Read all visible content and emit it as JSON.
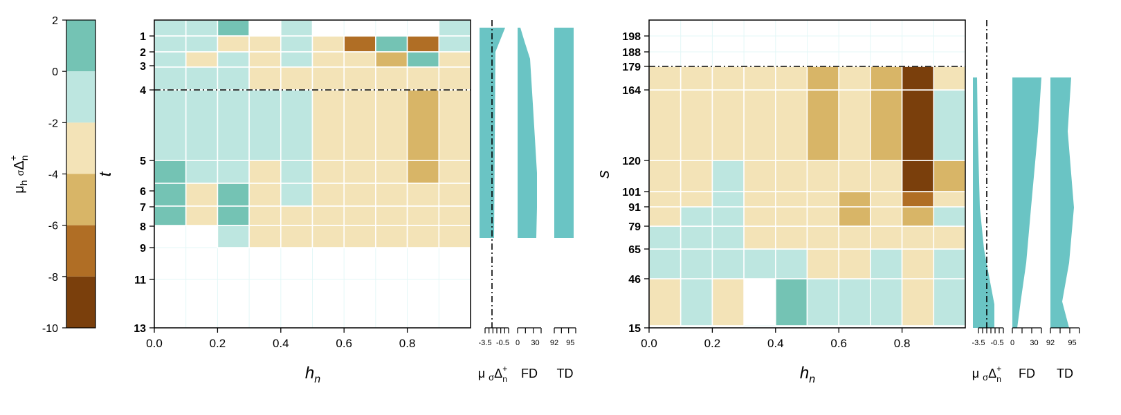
{
  "colorbar": {
    "label_parts": [
      "μ",
      "h",
      "σ",
      "Δ",
      "+",
      "n"
    ],
    "ticks": [
      2,
      0,
      -2,
      -4,
      -6,
      -8,
      -10
    ],
    "bins": [
      {
        "min": 0,
        "max": 2,
        "color": "#74c3b4"
      },
      {
        "min": -2,
        "max": 0,
        "color": "#bde6e0"
      },
      {
        "min": -4,
        "max": -2,
        "color": "#f3e3b7"
      },
      {
        "min": -6,
        "max": -4,
        "color": "#d8b567"
      },
      {
        "min": -8,
        "max": -6,
        "color": "#b06e25"
      },
      {
        "min": -10,
        "max": -8,
        "color": "#7a3f0c"
      }
    ]
  },
  "chart_data": [
    {
      "type": "heatmap",
      "xlabel_parts": [
        "h",
        "n"
      ],
      "ylabel": "t",
      "x_edges": [
        0,
        0.1,
        0.2,
        0.3,
        0.4,
        0.5,
        0.6,
        0.7,
        0.8,
        0.9,
        1.0
      ],
      "xticks": [
        "0.0",
        "0.2",
        "0.4",
        "0.6",
        "0.8"
      ],
      "xtick_values": [
        0,
        0.2,
        0.4,
        0.6,
        0.8
      ],
      "yticks": [
        "1",
        "2",
        "3",
        "4",
        "5",
        "6",
        "7",
        "8",
        "9",
        "11",
        "13"
      ],
      "y_edges": [
        "0.5",
        "1.5",
        "2.5",
        "3.5",
        "4",
        "5",
        "6",
        "7",
        "8",
        "9",
        "11",
        "13"
      ],
      "threshold_line": "4",
      "rows_color_index": [
        [
          1,
          1,
          0,
          null,
          1,
          null,
          null,
          null,
          null,
          1
        ],
        [
          1,
          1,
          2,
          2,
          1,
          2,
          4,
          0,
          4,
          1
        ],
        [
          1,
          2,
          1,
          2,
          1,
          2,
          2,
          3,
          0,
          2
        ],
        [
          1,
          1,
          1,
          2,
          2,
          2,
          2,
          2,
          2,
          2
        ],
        [
          1,
          1,
          1,
          1,
          1,
          2,
          2,
          2,
          3,
          2
        ],
        [
          0,
          1,
          1,
          2,
          1,
          2,
          2,
          2,
          3,
          2
        ],
        [
          0,
          2,
          0,
          2,
          1,
          2,
          2,
          2,
          2,
          2
        ],
        [
          0,
          2,
          0,
          2,
          2,
          2,
          2,
          2,
          2,
          2
        ],
        [
          null,
          null,
          1,
          2,
          2,
          2,
          2,
          2,
          2,
          2
        ],
        [
          null,
          null,
          null,
          null,
          null,
          null,
          null,
          null,
          null,
          null
        ],
        [
          null,
          null,
          null,
          null,
          null,
          null,
          null,
          null,
          null,
          null
        ]
      ],
      "side_panels": [
        {
          "label_parts": [
            "μ",
            "σ",
            "Δ",
            "+",
            "n"
          ],
          "ticks": [
            "-3.5",
            "-0.5"
          ],
          "tick_count": 7,
          "vline": true
        },
        {
          "label": "FD",
          "ticks": [
            "0",
            "30"
          ],
          "tick_count": 4
        },
        {
          "label": "TD",
          "ticks": [
            "92",
            "95"
          ],
          "tick_count": 4
        }
      ]
    },
    {
      "type": "heatmap",
      "xlabel_parts": [
        "h",
        "n"
      ],
      "ylabel": "s",
      "x_edges": [
        0,
        0.1,
        0.2,
        0.3,
        0.4,
        0.5,
        0.6,
        0.7,
        0.8,
        0.9,
        1.0
      ],
      "xticks": [
        "0.0",
        "0.2",
        "0.4",
        "0.6",
        "0.8"
      ],
      "xtick_values": [
        0,
        0.2,
        0.4,
        0.6,
        0.8
      ],
      "yticks": [
        "198",
        "188",
        "179",
        "164",
        "120",
        "101",
        "91",
        "79",
        "65",
        "46",
        "15"
      ],
      "y_edges": [
        "15",
        "46",
        "65",
        "79",
        "91",
        "101",
        "120",
        "164",
        "179",
        "188",
        "198",
        "208"
      ],
      "threshold_line": "179",
      "rows_color_index": [
        [
          2,
          1,
          2,
          null,
          0,
          1,
          1,
          1,
          2,
          1
        ],
        [
          1,
          1,
          1,
          1,
          1,
          2,
          2,
          1,
          2,
          1
        ],
        [
          1,
          1,
          1,
          2,
          2,
          2,
          2,
          2,
          2,
          2
        ],
        [
          2,
          1,
          1,
          2,
          2,
          2,
          3,
          2,
          3,
          1
        ],
        [
          2,
          2,
          1,
          2,
          2,
          2,
          3,
          2,
          4,
          2
        ],
        [
          2,
          2,
          1,
          2,
          2,
          2,
          2,
          2,
          5,
          3
        ],
        [
          2,
          2,
          2,
          2,
          2,
          3,
          2,
          3,
          5,
          1
        ],
        [
          2,
          2,
          2,
          2,
          2,
          3,
          2,
          3,
          5,
          2
        ],
        [
          null,
          null,
          null,
          null,
          null,
          null,
          null,
          null,
          null,
          null
        ],
        [
          null,
          null,
          null,
          null,
          null,
          null,
          null,
          null,
          null,
          null
        ],
        [
          null,
          null,
          null,
          null,
          null,
          null,
          null,
          null,
          null,
          null
        ]
      ],
      "side_panels": [
        {
          "label_parts": [
            "μ",
            "σ",
            "Δ",
            "+",
            "n"
          ],
          "ticks": [
            "-3.5",
            "-0.5"
          ],
          "tick_count": 7,
          "vline": true
        },
        {
          "label": "FD",
          "ticks": [
            "0",
            "30"
          ],
          "tick_count": 4
        },
        {
          "label": "TD",
          "ticks": [
            "92",
            "95"
          ],
          "tick_count": 4
        }
      ]
    }
  ]
}
